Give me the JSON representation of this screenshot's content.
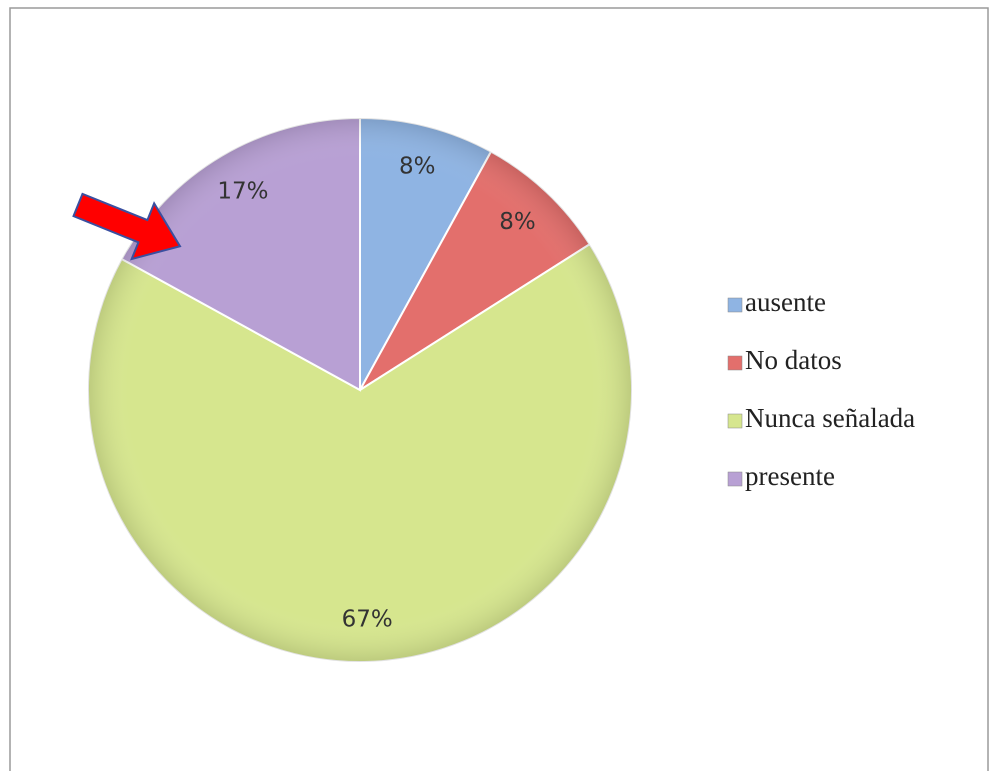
{
  "chart_data": {
    "type": "pie",
    "categories": [
      "ausente",
      "No datos",
      "Nunca señalada",
      "presente"
    ],
    "values": [
      8,
      8,
      67,
      17
    ],
    "value_labels": [
      "8%",
      "8%",
      "67%",
      "17%"
    ],
    "colors": [
      "#8fb4e3",
      "#e36f6c",
      "#d6e68e",
      "#b8a0d4"
    ],
    "legend": "right"
  }
}
